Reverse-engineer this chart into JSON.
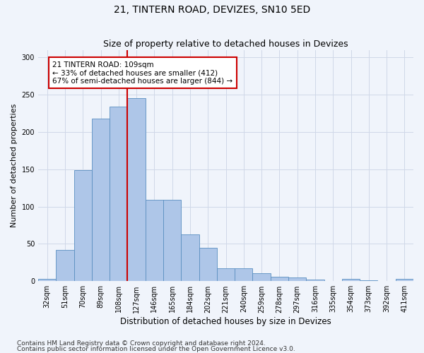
{
  "title": "21, TINTERN ROAD, DEVIZES, SN10 5ED",
  "subtitle": "Size of property relative to detached houses in Devizes",
  "xlabel": "Distribution of detached houses by size in Devizes",
  "ylabel": "Number of detached properties",
  "categories": [
    "32sqm",
    "51sqm",
    "70sqm",
    "89sqm",
    "108sqm",
    "127sqm",
    "146sqm",
    "165sqm",
    "184sqm",
    "202sqm",
    "221sqm",
    "240sqm",
    "259sqm",
    "278sqm",
    "297sqm",
    "316sqm",
    "335sqm",
    "354sqm",
    "373sqm",
    "392sqm",
    "411sqm"
  ],
  "values": [
    3,
    42,
    149,
    218,
    234,
    245,
    109,
    109,
    63,
    45,
    17,
    17,
    11,
    6,
    5,
    2,
    0,
    3,
    1,
    0,
    3
  ],
  "bar_color": "#aec6e8",
  "bar_edge_color": "#5a8fc0",
  "grid_color": "#d0d8e8",
  "bg_color": "#f0f4fb",
  "property_line_x": 4.5,
  "annotation_text": "21 TINTERN ROAD: 109sqm\n← 33% of detached houses are smaller (412)\n67% of semi-detached houses are larger (844) →",
  "annotation_box_color": "#ffffff",
  "annotation_box_edge": "#cc0000",
  "vline_color": "#cc0000",
  "footer1": "Contains HM Land Registry data © Crown copyright and database right 2024.",
  "footer2": "Contains public sector information licensed under the Open Government Licence v3.0.",
  "ylim": [
    0,
    310
  ],
  "title_fontsize": 10,
  "subtitle_fontsize": 9,
  "xlabel_fontsize": 8.5,
  "ylabel_fontsize": 8,
  "tick_fontsize": 7,
  "annotation_fontsize": 7.5,
  "footer_fontsize": 6.5
}
